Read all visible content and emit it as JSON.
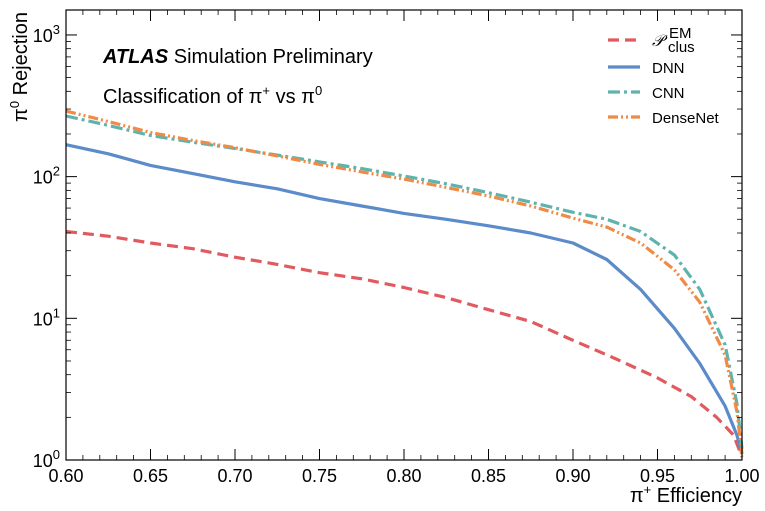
{
  "chart_data": {
    "type": "line",
    "xlabel_main": "π",
    "xlabel_sup": "+",
    "xlabel_rest": " Efficiency",
    "ylabel_main": "π",
    "ylabel_sup": "0",
    "ylabel_rest": " Rejection",
    "xlim": [
      0.6,
      1.0
    ],
    "ylim": [
      1,
      1500
    ],
    "yscale": "log",
    "x_ticks": [
      "0.60",
      "0.65",
      "0.70",
      "0.75",
      "0.80",
      "0.85",
      "0.90",
      "0.95",
      "1.00"
    ],
    "x_tick_values": [
      0.6,
      0.65,
      0.7,
      0.75,
      0.8,
      0.85,
      0.9,
      0.95,
      1.0
    ],
    "y_ticks": [
      {
        "value": 1,
        "base": "10",
        "exp": "0"
      },
      {
        "value": 10,
        "base": "10",
        "exp": "1"
      },
      {
        "value": 100,
        "base": "10",
        "exp": "2"
      },
      {
        "value": 1000,
        "base": "10",
        "exp": "3"
      }
    ],
    "annotation": {
      "atlas": "ATLAS",
      "rest": " Simulation Preliminary",
      "line2_a": "Classification of π",
      "line2_sup1": "+",
      "line2_b": " vs π",
      "line2_sup2": "0"
    },
    "legend_position": "top-right",
    "series": [
      {
        "name": "𝒫",
        "name_sup": "EM",
        "name_sub": "clus",
        "color": "#e05a5f",
        "dash": "dashed",
        "x": [
          0.6,
          0.625,
          0.65,
          0.675,
          0.7,
          0.725,
          0.75,
          0.775,
          0.8,
          0.825,
          0.85,
          0.875,
          0.9,
          0.925,
          0.95,
          0.97,
          0.985,
          0.995,
          1.0
        ],
        "y": [
          41,
          38,
          34,
          31,
          27,
          24,
          21,
          19,
          16.5,
          14,
          11.5,
          9.5,
          7.0,
          5.2,
          3.8,
          2.8,
          2.0,
          1.5,
          1.05
        ]
      },
      {
        "name": "DNN",
        "color": "#5b8bc9",
        "dash": "solid",
        "x": [
          0.6,
          0.625,
          0.65,
          0.675,
          0.7,
          0.725,
          0.75,
          0.775,
          0.8,
          0.825,
          0.85,
          0.875,
          0.9,
          0.92,
          0.94,
          0.96,
          0.975,
          0.99,
          0.997,
          1.0
        ],
        "y": [
          168,
          145,
          120,
          105,
          92,
          82,
          70,
          62,
          55,
          50,
          45,
          40,
          34,
          26,
          16,
          8.5,
          4.8,
          2.4,
          1.5,
          1.1
        ]
      },
      {
        "name": "CNN",
        "color": "#5fb3ad",
        "dash": "dashdot",
        "x": [
          0.6,
          0.625,
          0.65,
          0.675,
          0.7,
          0.725,
          0.75,
          0.775,
          0.8,
          0.825,
          0.85,
          0.875,
          0.9,
          0.92,
          0.94,
          0.96,
          0.975,
          0.99,
          0.997,
          1.0
        ],
        "y": [
          268,
          230,
          195,
          175,
          158,
          142,
          127,
          114,
          101,
          89,
          77,
          66,
          56,
          50,
          41,
          28,
          16,
          6.5,
          2.5,
          1.2
        ]
      },
      {
        "name": "DenseNet",
        "color": "#f08a45",
        "dash": "dashdotdot",
        "x": [
          0.6,
          0.625,
          0.65,
          0.675,
          0.7,
          0.725,
          0.75,
          0.775,
          0.8,
          0.825,
          0.85,
          0.875,
          0.9,
          0.92,
          0.94,
          0.96,
          0.975,
          0.99,
          0.997,
          1.0
        ],
        "y": [
          290,
          245,
          205,
          180,
          160,
          140,
          122,
          108,
          96,
          84,
          73,
          62,
          51,
          44,
          34,
          22,
          13,
          5.5,
          2.2,
          1.1
        ]
      }
    ]
  }
}
